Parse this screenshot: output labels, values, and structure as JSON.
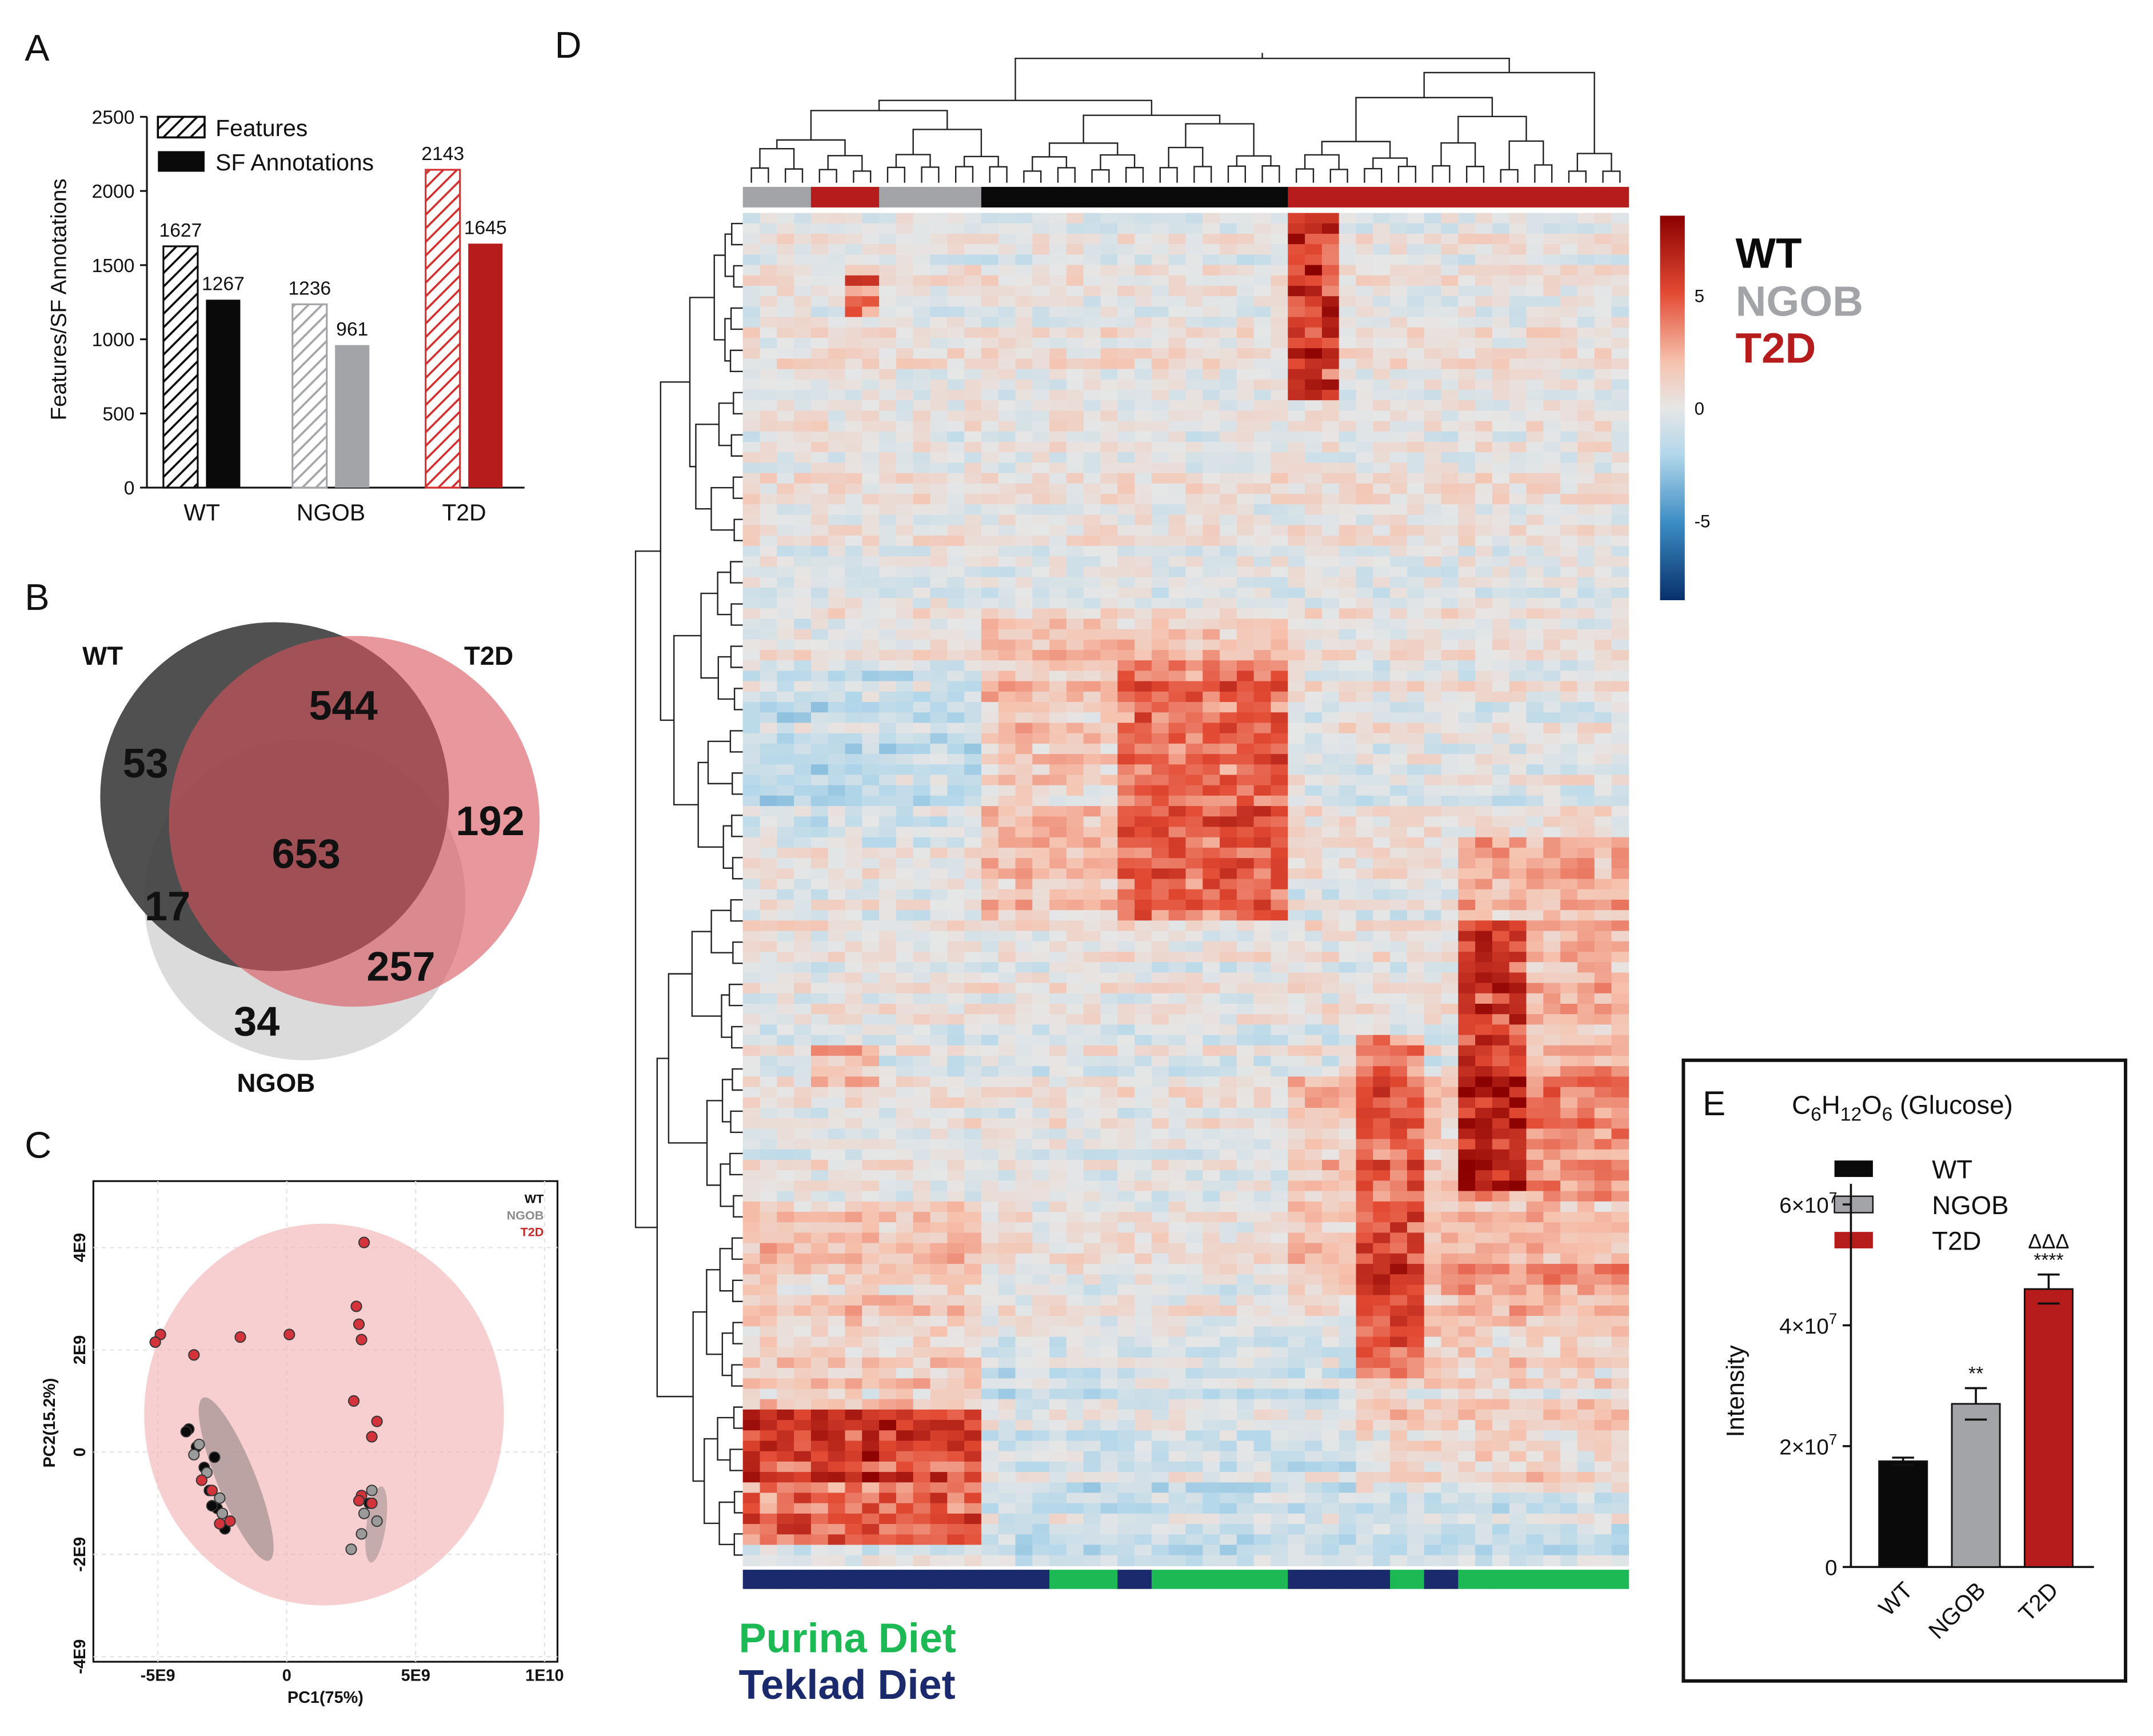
{
  "panel_letters": {
    "a": "A",
    "b": "B",
    "c": "C",
    "d": "D",
    "e": "E"
  },
  "colors": {
    "wt": "#0a0a0a",
    "ngob": "#a2a4a7",
    "t2d": "#b71c1c",
    "purina": "#1db954",
    "teklad": "#1a2a6c",
    "venn_wt": "#3d3d3d",
    "venn_t2d": "#d9525c",
    "venn_ngob": "#d5d5d5"
  },
  "chart_data": [
    {
      "id": "A",
      "type": "bar",
      "categories": [
        "WT",
        "NGOB",
        "T2D"
      ],
      "series": [
        {
          "name": "Features",
          "values": [
            1627,
            1236,
            2143
          ],
          "pattern": "hatched"
        },
        {
          "name": "SF Annotations",
          "values": [
            1267,
            961,
            1645
          ],
          "pattern": "solid"
        }
      ],
      "ylabel": "Features/SF Annotations",
      "ylim": [
        0,
        2500
      ],
      "yticks": [
        "0",
        "500",
        "1000",
        "1500",
        "2000",
        "2500"
      ],
      "data_labels": [
        "1627",
        "1267",
        "1236",
        "961",
        "2143",
        "1645"
      ],
      "legend": "top-left"
    },
    {
      "id": "B",
      "type": "venn",
      "sets": [
        "WT",
        "T2D",
        "NGOB"
      ],
      "regions": {
        "wt_only": "53",
        "t2d_only": "192",
        "ngob_only": "34",
        "wt_t2d": "544",
        "wt_ngob": "17",
        "t2d_ngob": "257",
        "all": "653"
      }
    },
    {
      "id": "C",
      "type": "scatter",
      "xlabel": "PC1(75%)",
      "ylabel": "PC2(15.2%)",
      "xlim": [
        -7500000000.0,
        10500000000.0
      ],
      "ylim": [
        -4100000000.0,
        5300000000.0
      ],
      "xticks": [
        "-5E9",
        "0",
        "5E9",
        "1E10"
      ],
      "yticks": [
        "-4E9",
        "-2E9",
        "0",
        "2E9",
        "4E9"
      ],
      "legend": [
        "WT",
        "NGOB",
        "T2D"
      ],
      "series": [
        {
          "name": "WT",
          "points": [
            [
              -3800000000.0,
              450000000.0
            ],
            [
              -3500000000.0,
              100000000.0
            ],
            [
              -3200000000.0,
              -300000000.0
            ],
            [
              -3000000000.0,
              -750000000.0
            ],
            [
              -2700000000.0,
              -1100000000.0
            ],
            [
              -2400000000.0,
              -1500000000.0
            ],
            [
              -2800000000.0,
              -100000000.0
            ],
            [
              -3900000000.0,
              400000000.0
            ],
            [
              -2900000000.0,
              -1050000000.0
            ],
            [
              3200000000.0,
              -1000000000.0
            ]
          ]
        },
        {
          "name": "NGOB",
          "points": [
            [
              -3600000000.0,
              -50000000.0
            ],
            [
              -3100000000.0,
              -400000000.0
            ],
            [
              -2600000000.0,
              -900000000.0
            ],
            [
              -3400000000.0,
              150000000.0
            ],
            [
              -2500000000.0,
              -1200000000.0
            ],
            [
              2500000000.0,
              -1900000000.0
            ],
            [
              2900000000.0,
              -1600000000.0
            ],
            [
              3500000000.0,
              -1350000000.0
            ],
            [
              3300000000.0,
              -750000000.0
            ],
            [
              3000000000.0,
              -1200000000.0
            ]
          ]
        },
        {
          "name": "T2D",
          "points": [
            [
              -4900000000.0,
              2300000000.0
            ],
            [
              -5100000000.0,
              2150000000.0
            ],
            [
              -3600000000.0,
              1900000000.0
            ],
            [
              -1800000000.0,
              2250000000.0
            ],
            [
              100000000.0,
              2300000000.0
            ],
            [
              3000000000.0,
              4100000000.0
            ],
            [
              2700000000.0,
              2850000000.0
            ],
            [
              2800000000.0,
              2500000000.0
            ],
            [
              2900000000.0,
              2200000000.0
            ],
            [
              2600000000.0,
              1000000000.0
            ],
            [
              3300000000.0,
              300000000.0
            ],
            [
              3500000000.0,
              600000000.0
            ],
            [
              2900000000.0,
              -850000000.0
            ],
            [
              3300000000.0,
              -1000000000.0
            ],
            [
              -2900000000.0,
              -750000000.0
            ],
            [
              -2600000000.0,
              -1400000000.0
            ],
            [
              -2200000000.0,
              -1350000000.0
            ],
            [
              -3300000000.0,
              -550000000.0
            ],
            [
              2800000000.0,
              -950000000.0
            ]
          ]
        }
      ],
      "confidence_ellipse": true
    },
    {
      "id": "D",
      "type": "heatmap",
      "colorbar_ticks": [
        "5",
        "0",
        "-5"
      ],
      "clim": [
        -7,
        7
      ],
      "group_legend": [
        "WT",
        "NGOB",
        "T2D"
      ],
      "diet_legend": [
        "Purina Diet",
        "Teklad Diet"
      ],
      "n_columns": 52,
      "column_groups": [
        "NGOB",
        "NGOB",
        "NGOB",
        "NGOB",
        "T2D",
        "T2D",
        "T2D",
        "T2D",
        "NGOB",
        "NGOB",
        "NGOB",
        "NGOB",
        "NGOB",
        "NGOB",
        "WT",
        "WT",
        "WT",
        "WT",
        "WT",
        "WT",
        "WT",
        "WT",
        "WT",
        "WT",
        "WT",
        "WT",
        "WT",
        "WT",
        "WT",
        "WT",
        "WT",
        "WT",
        "T2D",
        "T2D",
        "T2D",
        "T2D",
        "T2D",
        "T2D",
        "T2D",
        "T2D",
        "T2D",
        "T2D",
        "T2D",
        "T2D",
        "T2D",
        "T2D",
        "T2D",
        "T2D",
        "T2D",
        "T2D",
        "T2D",
        "T2D"
      ],
      "column_diets": [
        "Teklad",
        "Teklad",
        "Teklad",
        "Teklad",
        "Teklad",
        "Teklad",
        "Teklad",
        "Teklad",
        "Teklad",
        "Teklad",
        "Teklad",
        "Teklad",
        "Teklad",
        "Teklad",
        "Teklad",
        "Teklad",
        "Teklad",
        "Teklad",
        "Purina",
        "Purina",
        "Purina",
        "Purina",
        "Teklad",
        "Teklad",
        "Purina",
        "Purina",
        "Purina",
        "Purina",
        "Purina",
        "Purina",
        "Purina",
        "Purina",
        "Teklad",
        "Teklad",
        "Teklad",
        "Teklad",
        "Teklad",
        "Teklad",
        "Purina",
        "Purina",
        "Teklad",
        "Teklad",
        "Purina",
        "Purina",
        "Purina",
        "Purina",
        "Purina",
        "Purina",
        "Purina",
        "Purina",
        "Purina",
        "Purina"
      ],
      "clusters": [
        {
          "c0": 0,
          "c1": 14,
          "r0": 0.885,
          "r1": 0.985,
          "v": 3.5
        },
        {
          "c0": 32,
          "c1": 35,
          "r0": 0.0,
          "r1": 0.14,
          "v": 4.5
        },
        {
          "c0": 6,
          "c1": 8,
          "r0": 0.05,
          "r1": 0.08,
          "v": 3.2
        },
        {
          "c0": 14,
          "c1": 32,
          "r0": 0.3,
          "r1": 0.52,
          "v": 1.2
        },
        {
          "c0": 22,
          "c1": 32,
          "r0": 0.33,
          "r1": 0.52,
          "v": 2.2
        },
        {
          "c0": 42,
          "c1": 52,
          "r0": 0.46,
          "r1": 0.73,
          "v": 1.6
        },
        {
          "c0": 42,
          "c1": 46,
          "r0": 0.52,
          "r1": 0.72,
          "v": 3.0
        },
        {
          "c0": 32,
          "c1": 52,
          "r0": 0.63,
          "r1": 0.8,
          "v": 1.1
        },
        {
          "c0": 36,
          "c1": 40,
          "r0": 0.61,
          "r1": 0.86,
          "v": 2.5
        },
        {
          "c0": 36,
          "c1": 52,
          "r0": 0.78,
          "r1": 0.95,
          "v": 1.2
        },
        {
          "c0": 0,
          "c1": 14,
          "r0": 0.73,
          "r1": 0.94,
          "v": 1.0
        },
        {
          "c0": 4,
          "c1": 8,
          "r0": 0.615,
          "r1": 0.645,
          "v": 1.4
        },
        {
          "c0": 0,
          "c1": 14,
          "r0": 0.34,
          "r1": 0.47,
          "v": -0.9
        },
        {
          "c0": 14,
          "c1": 52,
          "r0": 0.85,
          "r1": 1.0,
          "v": -0.6
        }
      ]
    },
    {
      "id": "E",
      "type": "bar",
      "title_main": "C",
      "title_parts": [
        [
          "C",
          ""
        ],
        [
          "6",
          "sub"
        ],
        [
          "H",
          ""
        ],
        [
          "12",
          "sub"
        ],
        [
          "O",
          ""
        ],
        [
          "6",
          "sub"
        ],
        [
          " (Glucose)",
          ""
        ]
      ],
      "categories": [
        "WT",
        "NGOB",
        "T2D"
      ],
      "values": [
        17500000.0,
        27000000.0,
        46000000.0
      ],
      "errors": [
        600000.0,
        2600000.0,
        2400000.0
      ],
      "ylabel": "Intensity",
      "ylim": [
        0,
        65000000.0
      ],
      "yticks": [
        [
          0,
          "0",
          ""
        ],
        [
          20000000.0,
          "2×10",
          "7"
        ],
        [
          40000000.0,
          "4×10",
          "7"
        ],
        [
          60000000.0,
          "6×10",
          "7"
        ]
      ],
      "significance": [
        "",
        "**",
        "****"
      ],
      "significance_2": [
        "",
        "",
        "ΔΔΔ"
      ],
      "legend": "top-left"
    }
  ]
}
